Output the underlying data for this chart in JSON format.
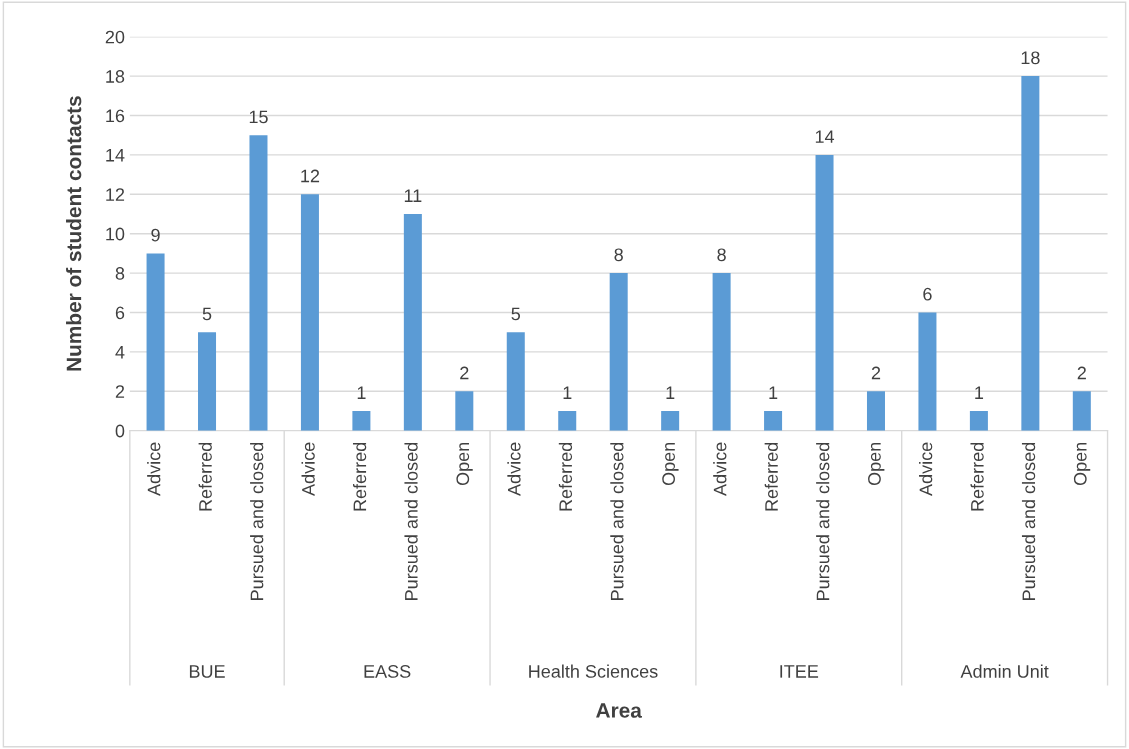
{
  "chart_data": {
    "type": "bar",
    "xlabel": "Area",
    "ylabel": "Number of student contacts",
    "categories": [
      "Advice",
      "Referred",
      "Pursued and closed",
      "Advice",
      "Referred",
      "Pursued and closed",
      "Open",
      "Advice",
      "Referred",
      "Pursued and closed",
      "Open",
      "Advice",
      "Referred",
      "Pursued and closed",
      "Open",
      "Advice",
      "Referred",
      "Pursued and closed",
      "Open"
    ],
    "values": [
      9,
      5,
      15,
      12,
      1,
      11,
      2,
      5,
      1,
      8,
      1,
      8,
      1,
      14,
      2,
      6,
      1,
      18,
      2
    ],
    "color": "#5b9bd5",
    "annotations": [
      "BUE",
      "EASS",
      "Health Sciences",
      "ITEE",
      "Admin Unit"
    ],
    "ylim": [
      0,
      20
    ],
    "yticks": [
      0,
      2,
      4,
      6,
      8,
      10,
      12,
      14,
      16,
      18,
      20
    ],
    "grid": "y",
    "data_labels": true,
    "legend": false
  }
}
